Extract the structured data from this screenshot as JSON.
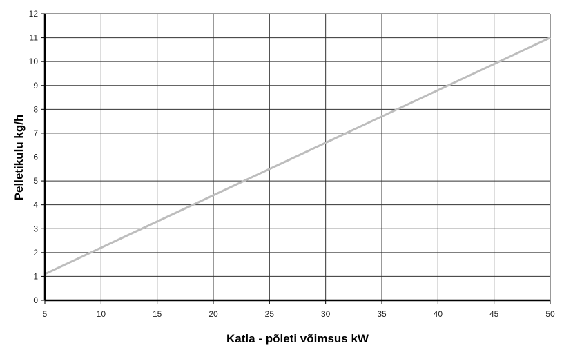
{
  "chart_data": {
    "type": "line",
    "title": "",
    "xlabel": "Katla - põleti võimsus kW",
    "ylabel": "Pelletikulu  kg/h",
    "xlim": [
      5,
      50
    ],
    "ylim": [
      0,
      12
    ],
    "x_ticks": [
      5,
      10,
      15,
      20,
      25,
      30,
      35,
      40,
      45,
      50
    ],
    "y_ticks": [
      0,
      1,
      2,
      3,
      4,
      5,
      6,
      7,
      8,
      9,
      10,
      11,
      12
    ],
    "grid": true,
    "legend": "none",
    "series": [
      {
        "x": [
          5,
          50
        ],
        "y": [
          1.1,
          11.0
        ],
        "color": "#bdbdbd"
      }
    ],
    "colors": {
      "grid": "#333333",
      "axis": "#000000",
      "line": "#bdbdbd"
    }
  }
}
